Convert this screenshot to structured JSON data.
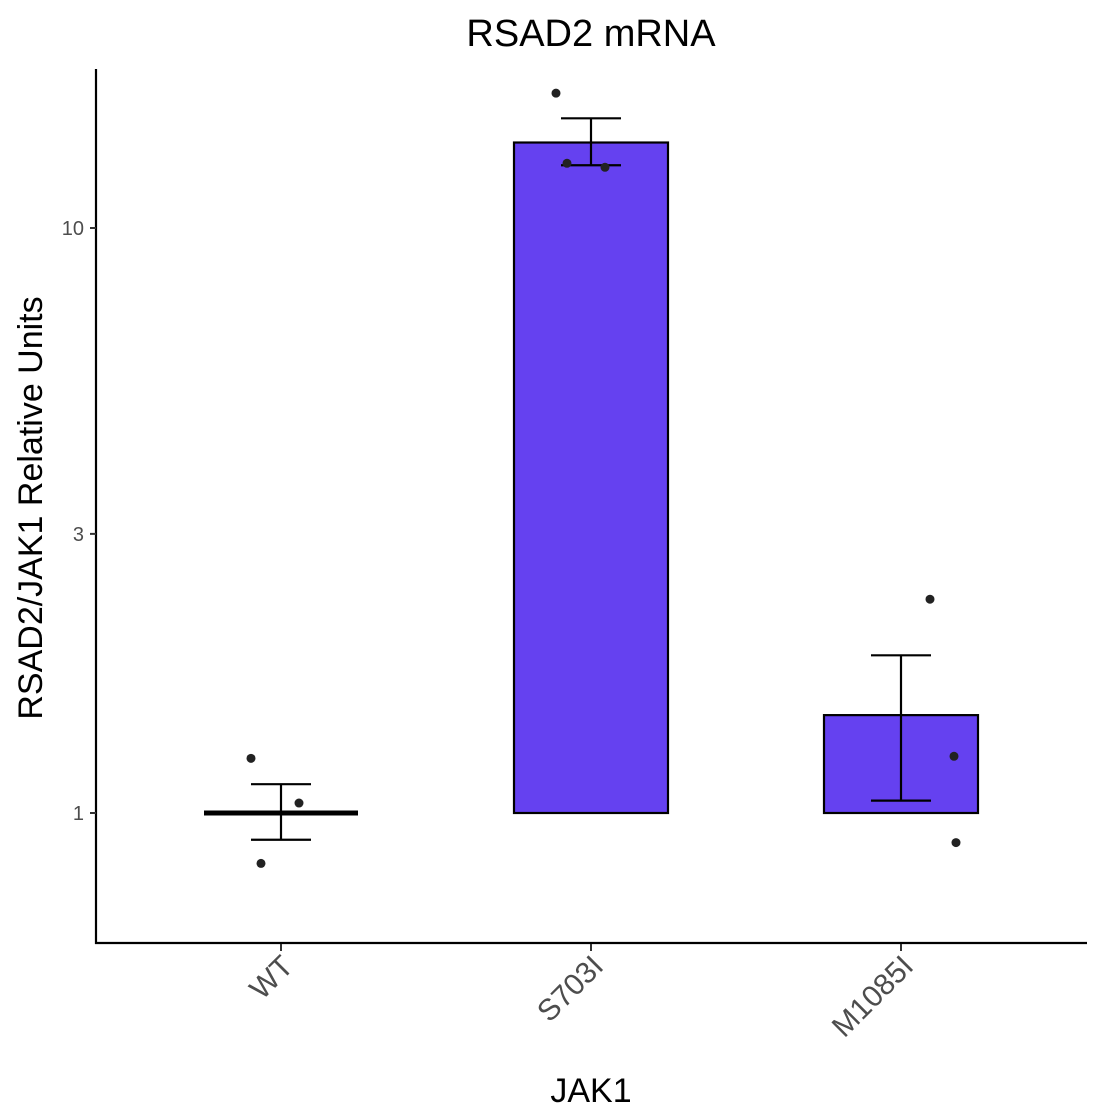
{
  "chart_data": {
    "type": "bar",
    "title": "RSAD2 mRNA",
    "xlabel": "JAK1",
    "ylabel": "RSAD2/JAK1 Relative Units",
    "y_scale": "log10",
    "ylim": [
      0.72,
      20
    ],
    "yticks": [
      1,
      3,
      10
    ],
    "ytick_labels": [
      "1",
      "3",
      "10"
    ],
    "bar_baseline": 1,
    "bar_color": "#6541F0",
    "categories": [
      "WT",
      "S703I",
      "M1085I"
    ],
    "values": [
      1.0,
      14.0,
      1.47
    ],
    "error_bars": [
      {
        "lower": 0.9,
        "upper": 1.12
      },
      {
        "lower": 12.8,
        "upper": 15.4
      },
      {
        "lower": 1.05,
        "upper": 1.86
      }
    ],
    "points": [
      [
        1.24,
        1.04,
        0.82
      ],
      [
        17.0,
        12.7,
        12.9
      ],
      [
        2.32,
        1.25,
        0.89
      ]
    ],
    "grid": false,
    "legend": "none"
  }
}
